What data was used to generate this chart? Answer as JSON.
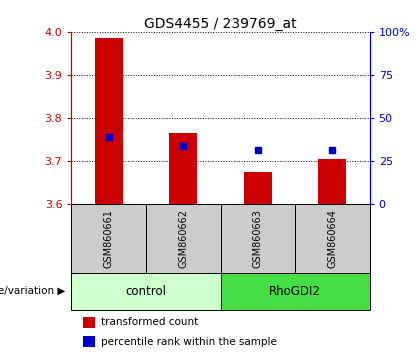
{
  "title": "GDS4455 / 239769_at",
  "samples": [
    "GSM860661",
    "GSM860662",
    "GSM860663",
    "GSM860664"
  ],
  "red_values": [
    3.985,
    3.765,
    3.675,
    3.705
  ],
  "blue_values": [
    3.755,
    3.735,
    3.725,
    3.725
  ],
  "y_min": 3.6,
  "y_max": 4.0,
  "y_ticks": [
    3.6,
    3.7,
    3.8,
    3.9,
    4.0
  ],
  "right_y_ticks": [
    0,
    25,
    50,
    75,
    100
  ],
  "bar_base": 3.6,
  "bar_color": "#CC0000",
  "dot_color": "#0000CC",
  "legend_red": "transformed count",
  "legend_blue": "percentile rank within the sample",
  "group_label": "genotype/variation",
  "group_names": [
    "control",
    "RhoGDI2"
  ],
  "ctrl_color": "#CCFFCC",
  "rhogdi_color": "#44DD44",
  "axis_color_red": "#CC0000",
  "axis_color_blue": "#0000CC",
  "sample_bg": "#CCCCCC"
}
